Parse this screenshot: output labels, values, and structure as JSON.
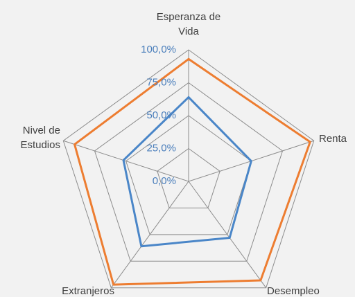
{
  "chart_data": {
    "type": "radar",
    "categories": [
      "Esperanza de Vida",
      "Renta",
      "Desempleo",
      "Extranjeros",
      "Nivel de Estudios"
    ],
    "series": [
      {
        "color": "#ed7d31",
        "values": [
          93,
          97,
          93,
          97,
          91
        ]
      },
      {
        "color": "#4a86c8",
        "values": [
          64,
          50,
          53,
          61,
          52
        ]
      }
    ],
    "ylim": [
      0,
      100
    ],
    "yticks": [
      {
        "value": 0,
        "label": "0,0%"
      },
      {
        "value": 25,
        "label": "25,0%"
      },
      {
        "value": 50,
        "label": "50,0%"
      },
      {
        "value": 75,
        "label": "75,0%"
      },
      {
        "value": 100,
        "label": "100,0%"
      }
    ],
    "grid": true
  }
}
